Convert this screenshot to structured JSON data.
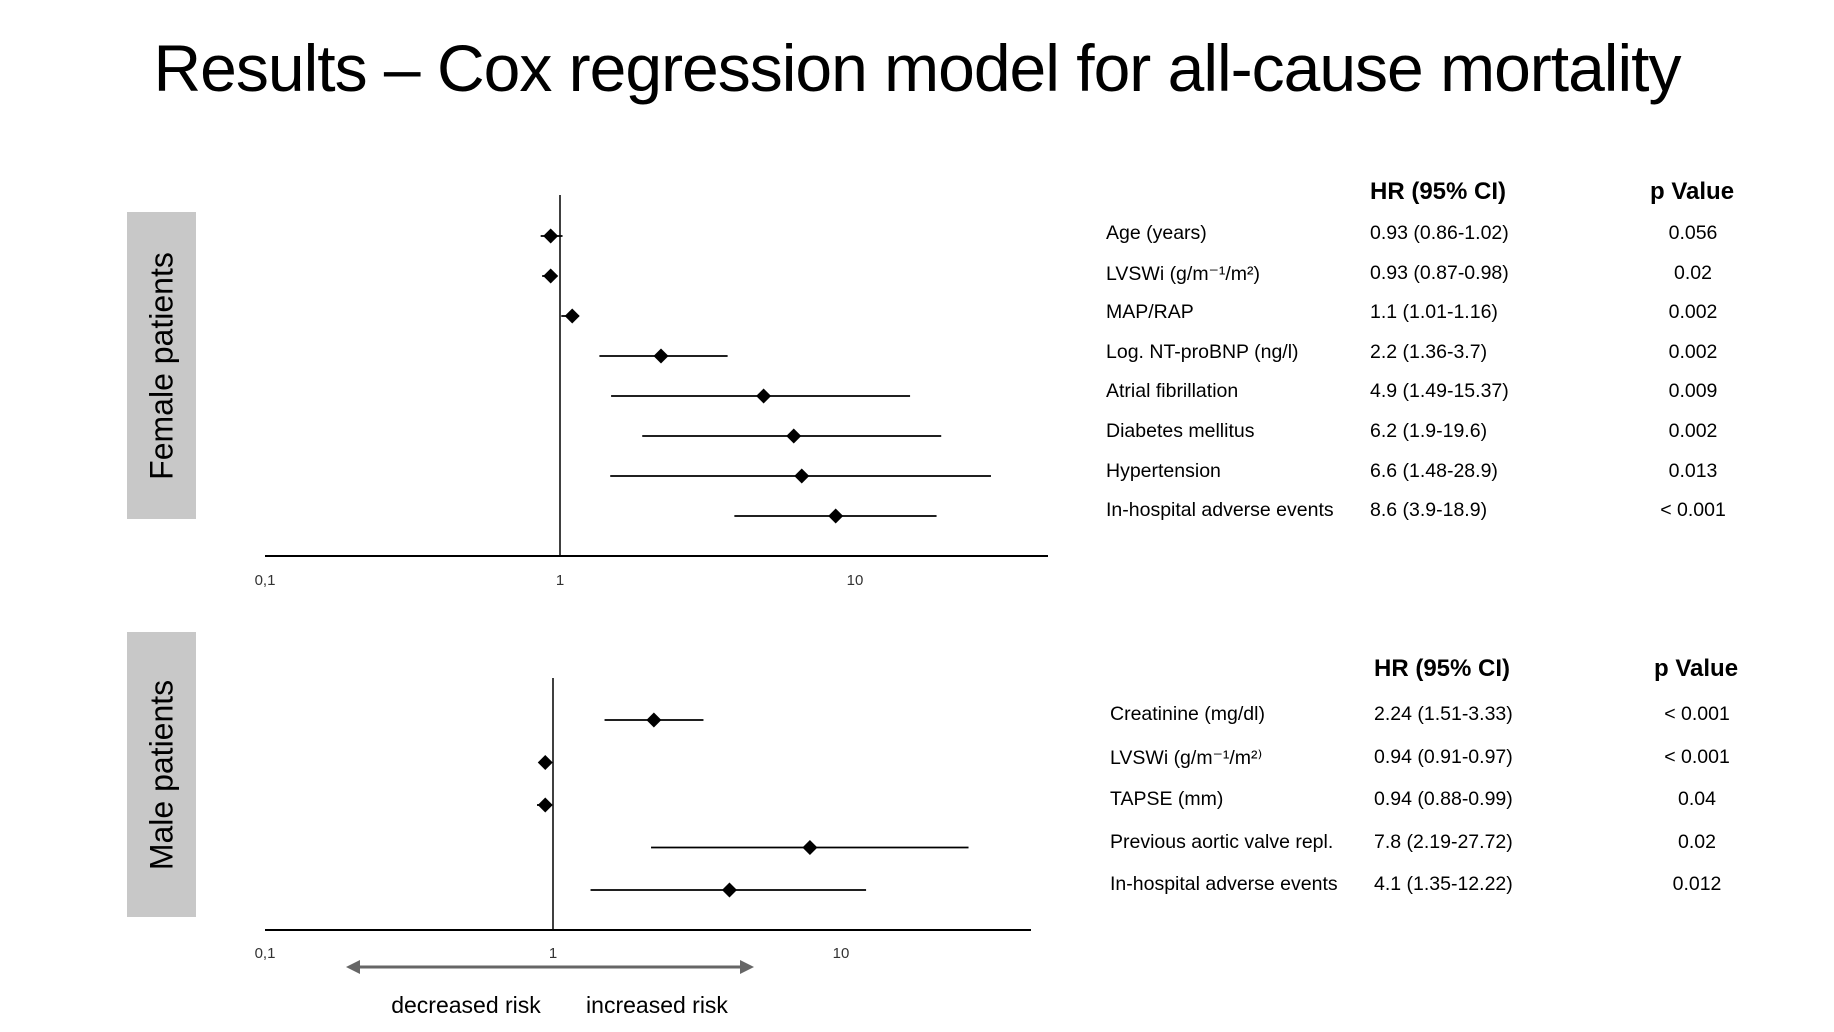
{
  "title": "Results – Cox regression model for all-cause mortality",
  "colors": {
    "label_box": "#c8c8c8",
    "axis": "#000000",
    "arrow": "#666666"
  },
  "arrow_labels": {
    "decreased": "decreased risk",
    "increased": "increased risk"
  },
  "table_headers": {
    "hr": "HR (95% CI)",
    "p": "p Value"
  },
  "chart_data": [
    {
      "type": "forest",
      "group": "Female patients",
      "x_scale": "log",
      "xlim": [
        0.1,
        50
      ],
      "reference_line": 1,
      "tick_labels": [
        "0,1",
        "1",
        "10"
      ],
      "rows": [
        {
          "label": "Age (years)",
          "hr": 0.93,
          "lo": 0.86,
          "hi": 1.02,
          "hr_text": "0.93 (0.86-1.02)",
          "p": "0.056"
        },
        {
          "label": "LVSWi (g/m⁻¹/m²)",
          "hr": 0.93,
          "lo": 0.87,
          "hi": 0.98,
          "hr_text": "0.93 (0.87-0.98)",
          "p": "0.02"
        },
        {
          "label": "MAP/RAP",
          "hr": 1.1,
          "lo": 1.01,
          "hi": 1.16,
          "hr_text": "1.1 (1.01-1.16)",
          "p": "0.002"
        },
        {
          "label": "Log. NT-proBNP (ng/l)",
          "hr": 2.2,
          "lo": 1.36,
          "hi": 3.7,
          "hr_text": "2.2 (1.36-3.7)",
          "p": "0.002"
        },
        {
          "label": "Atrial fibrillation",
          "hr": 4.9,
          "lo": 1.49,
          "hi": 15.37,
          "hr_text": "4.9 (1.49-15.37)",
          "p": "0.009"
        },
        {
          "label": "Diabetes mellitus",
          "hr": 6.2,
          "lo": 1.9,
          "hi": 19.6,
          "hr_text": "6.2 (1.9-19.6)",
          "p": "0.002"
        },
        {
          "label": "Hypertension",
          "hr": 6.6,
          "lo": 1.48,
          "hi": 28.9,
          "hr_text": "6.6 (1.48-28.9)",
          "p": "0.013"
        },
        {
          "label": "In-hospital adverse events",
          "hr": 8.6,
          "lo": 3.9,
          "hi": 18.9,
          "hr_text": "8.6 (3.9-18.9)",
          "p": "< 0.001"
        }
      ]
    },
    {
      "type": "forest",
      "group": "Male patients",
      "x_scale": "log",
      "xlim": [
        0.1,
        50
      ],
      "reference_line": 1,
      "tick_labels": [
        "0,1",
        "1",
        "10"
      ],
      "rows": [
        {
          "label": "Creatinine (mg/dl)",
          "hr": 2.24,
          "lo": 1.51,
          "hi": 3.33,
          "hr_text": "2.24 (1.51-3.33)",
          "p": "< 0.001"
        },
        {
          "label": "LVSWi (g/m⁻¹/m²⁾",
          "hr": 0.94,
          "lo": 0.91,
          "hi": 0.97,
          "hr_text": "0.94 (0.91-0.97)",
          "p": "< 0.001"
        },
        {
          "label": "TAPSE (mm)",
          "hr": 0.94,
          "lo": 0.88,
          "hi": 0.99,
          "hr_text": "0.94 (0.88-0.99)",
          "p": "0.04"
        },
        {
          "label": "Previous aortic valve repl.",
          "hr": 7.8,
          "lo": 2.19,
          "hi": 27.72,
          "hr_text": "7.8 (2.19-27.72)",
          "p": "0.02"
        },
        {
          "label": "In-hospital adverse events",
          "hr": 4.1,
          "lo": 1.35,
          "hi": 12.22,
          "hr_text": "4.1 (1.35-12.22)",
          "p": "0.012"
        }
      ]
    }
  ]
}
